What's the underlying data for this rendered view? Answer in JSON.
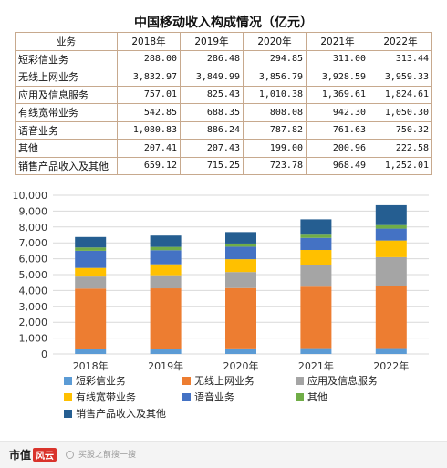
{
  "table": {
    "title": "中国移动收入构成情况（亿元）",
    "header": [
      "业务",
      "2018年",
      "2019年",
      "2020年",
      "2021年",
      "2022年"
    ],
    "rows": [
      [
        "短彩信业务",
        "288.00",
        "286.48",
        "294.85",
        "311.00",
        "313.44"
      ],
      [
        "无线上网业务",
        "3,832.97",
        "3,849.99",
        "3,856.79",
        "3,928.59",
        "3,959.33"
      ],
      [
        "应用及信息服务",
        "757.01",
        "825.43",
        "1,010.38",
        "1,369.61",
        "1,824.61"
      ],
      [
        "有线宽带业务",
        "542.85",
        "688.35",
        "808.08",
        "942.30",
        "1,050.30"
      ],
      [
        "语音业务",
        "1,080.83",
        "886.24",
        "787.82",
        "761.63",
        "750.32"
      ],
      [
        "其他",
        "207.41",
        "207.43",
        "199.00",
        "200.96",
        "222.58"
      ],
      [
        "销售产品收入及其他",
        "659.12",
        "715.25",
        "723.78",
        "968.49",
        "1,252.01"
      ]
    ]
  },
  "chart_data": {
    "type": "bar",
    "stacked": true,
    "categories": [
      "2018年",
      "2019年",
      "2020年",
      "2021年",
      "2022年"
    ],
    "ylim": [
      0,
      10000
    ],
    "yticks": [
      0,
      1000,
      2000,
      3000,
      4000,
      5000,
      6000,
      7000,
      8000,
      9000,
      10000
    ],
    "ytick_labels": [
      "0",
      "1,000",
      "2,000",
      "3,000",
      "4,000",
      "5,000",
      "6,000",
      "7,000",
      "8,000",
      "9,000",
      "10,000"
    ],
    "grid": true,
    "legend_position": "bottom",
    "series": [
      {
        "name": "短彩信业务",
        "color": "#5b9bd5",
        "values": [
          288.0,
          286.48,
          294.85,
          311.0,
          313.44
        ]
      },
      {
        "name": "无线上网业务",
        "color": "#ed7d31",
        "values": [
          3832.97,
          3849.99,
          3856.79,
          3928.59,
          3959.33
        ]
      },
      {
        "name": "应用及信息服务",
        "color": "#a5a5a5",
        "values": [
          757.01,
          825.43,
          1010.38,
          1369.61,
          1824.61
        ]
      },
      {
        "name": "有线宽带业务",
        "color": "#ffc000",
        "values": [
          542.85,
          688.35,
          808.08,
          942.3,
          1050.3
        ]
      },
      {
        "name": "语音业务",
        "color": "#4472c4",
        "values": [
          1080.83,
          886.24,
          787.82,
          761.63,
          750.32
        ]
      },
      {
        "name": "其他",
        "color": "#70ad47",
        "values": [
          207.41,
          207.43,
          199.0,
          200.96,
          222.58
        ]
      },
      {
        "name": "销售产品收入及其他",
        "color": "#255e91",
        "values": [
          659.12,
          715.25,
          723.78,
          968.49,
          1252.01
        ]
      }
    ]
  },
  "footer": {
    "brand": "市值",
    "brand_box": "风云",
    "search_placeholder": "买股之前搜一搜"
  }
}
